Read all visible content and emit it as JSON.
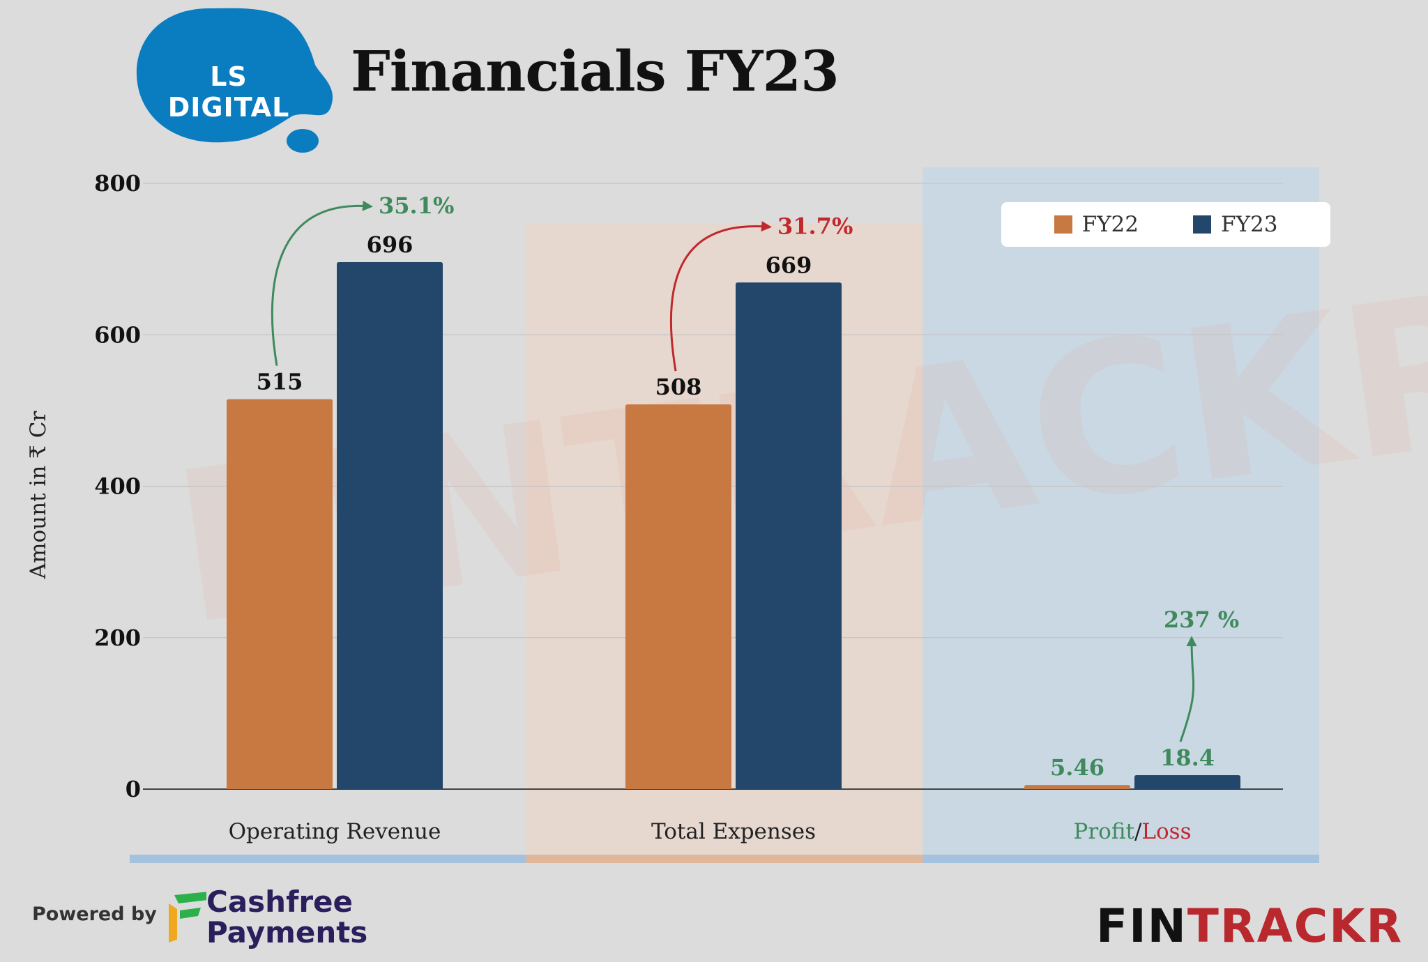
{
  "header": {
    "logo_text": "LS DIGITAL",
    "title": "Financials FY23"
  },
  "chart_data": {
    "type": "bar",
    "categories": [
      "Operating Revenue",
      "Total Expenses",
      "Profit/Loss"
    ],
    "category_labels": [
      [
        {
          "text": "Operating Revenue",
          "color": "#222222"
        }
      ],
      [
        {
          "text": "Total Expenses",
          "color": "#222222"
        }
      ],
      [
        {
          "text": "Profit",
          "color": "#3e8a5c"
        },
        {
          "text": "/",
          "color": "#222222"
        },
        {
          "text": "Loss",
          "color": "#c0282d"
        }
      ]
    ],
    "series": [
      {
        "name": "FY22",
        "color": "#c87941",
        "values": [
          515,
          508,
          5.46
        ],
        "labels": [
          "515",
          "508",
          "5.46"
        ]
      },
      {
        "name": "FY23",
        "color": "#23466b",
        "values": [
          696,
          669,
          18.4
        ],
        "labels": [
          "696",
          "669",
          "18.4"
        ]
      }
    ],
    "value_label_colors": [
      "#111111",
      "#111111",
      "#3e8a5c"
    ],
    "growth": [
      {
        "label": "35.1%",
        "color": "#3e8a5c"
      },
      {
        "label": "31.7%",
        "color": "#c0282d"
      },
      {
        "label": "237 %",
        "color": "#3e8a5c"
      }
    ],
    "band_colors": [
      "#a4c2de",
      "#e0b79b",
      "#a4c2de"
    ],
    "ylabel": "Amount in ₹ Cr",
    "ylim": [
      0,
      800
    ],
    "yticks": [
      0,
      200,
      400,
      600,
      800
    ],
    "grid": true,
    "legend_position": "top-right"
  },
  "watermark": "FINTRACKR",
  "footer": {
    "powered_by": "Powered by",
    "sponsor_line1": "Cashfree",
    "sponsor_line2": "Payments",
    "brand_part1": "FIN",
    "brand_part2": "TRACKR"
  }
}
